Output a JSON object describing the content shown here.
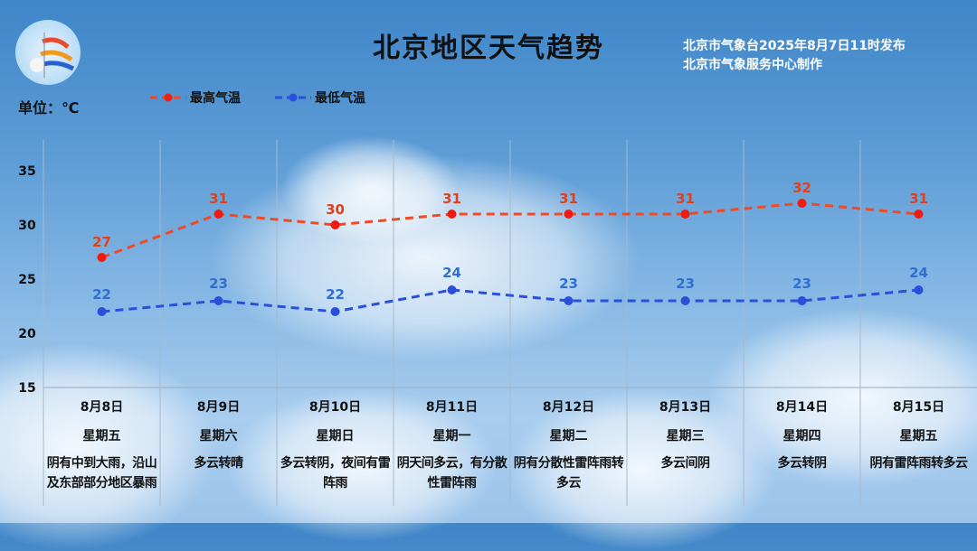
{
  "header": {
    "title": "北京地区天气趋势",
    "source_line1": "北京市气象台2025年8月7日11时发布",
    "source_line2": "北京市气象服务中心制作",
    "unit": "单位：℃",
    "logo": "Beijing Meteorological Service 北京气象"
  },
  "colors": {
    "high": "#f04a24",
    "low": "#2a4fd8",
    "high_label": "#e0401c",
    "low_label": "#2f6fd0"
  },
  "chart_data": {
    "type": "line",
    "title": "北京地区天气趋势",
    "ylabel": "单位：℃",
    "ylim": [
      15,
      35
    ],
    "yticks": [
      35,
      30,
      25,
      20,
      15
    ],
    "legend_position": "top-left",
    "categories": [
      "8月8日",
      "8月9日",
      "8月10日",
      "8月11日",
      "8月12日",
      "8月13日",
      "8月14日",
      "8月15日"
    ],
    "weekdays": [
      "星期五",
      "星期六",
      "星期日",
      "星期一",
      "星期二",
      "星期三",
      "星期四",
      "星期五"
    ],
    "conditions": [
      "阴有中到大雨，沿山及东部部分地区暴雨",
      "多云转晴",
      "多云转阴，夜间有雷阵雨",
      "阴天间多云，有分散性雷阵雨",
      "阴有分散性雷阵雨转多云",
      "多云间阴",
      "多云转阴",
      "阴有雷阵雨转多云"
    ],
    "series": [
      {
        "name": "最高气温",
        "values": [
          27,
          31,
          30,
          31,
          31,
          31,
          32,
          31
        ]
      },
      {
        "name": "最低气温",
        "values": [
          22,
          23,
          22,
          24,
          23,
          23,
          23,
          24
        ]
      }
    ]
  }
}
